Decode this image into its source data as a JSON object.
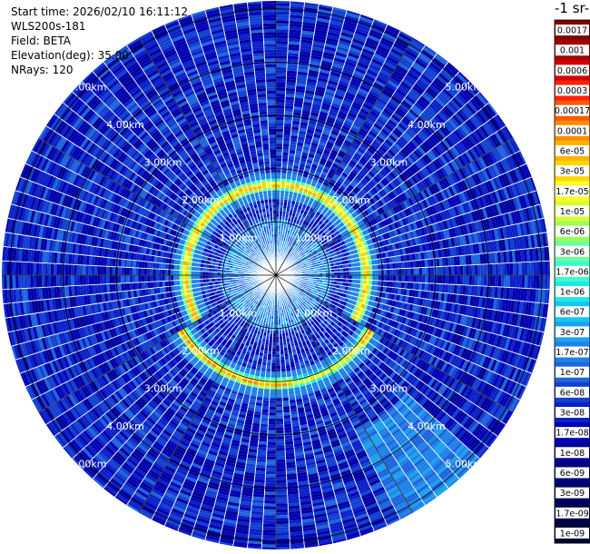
{
  "header": {
    "start_time": "Start time: 2026/02/10 16:11:12",
    "instrument": "WLS200s-181",
    "field": "Field: BETA",
    "elevation": "Elevation(deg): 35.00",
    "nrays": "NRays: 120"
  },
  "colorbar": {
    "title": "-1 sr-",
    "labels": [
      "0.0017",
      "0.001",
      "0.0006",
      "0.0003",
      "0.00017",
      "0.0001",
      "6e-05",
      "3e-05",
      "1.7e-05",
      "1e-05",
      "6e-06",
      "3e-06",
      "1.7e-06",
      "1e-06",
      "6e-07",
      "3e-07",
      "1.7e-07",
      "1e-07",
      "6e-08",
      "3e-08",
      "1.7e-08",
      "1e-08",
      "6e-09",
      "3e-09",
      "1.7e-09",
      "1e-09"
    ],
    "colors": [
      "#800000",
      "#a50000",
      "#d40000",
      "#ff2000",
      "#ff5a00",
      "#ff8c00",
      "#ffb400",
      "#ffd700",
      "#ffff28",
      "#d4ff30",
      "#9aff5a",
      "#6cffa0",
      "#3cffcc",
      "#20e8e8",
      "#10c8f0",
      "#1ca0f0",
      "#1e82e8",
      "#1e64dc",
      "#1240d0",
      "#0a20c8",
      "#0000b4",
      "#000096",
      "#00007a",
      "#000064",
      "#00004c",
      "#000038"
    ]
  },
  "chart_data": {
    "type": "heatmap",
    "projection": "polar PPI scan",
    "field": "BETA",
    "elevation_deg": 35.0,
    "n_rays": 120,
    "range_rings": [
      {
        "label": "1.00km",
        "km": 1.0
      },
      {
        "label": "2.00km",
        "km": 2.0
      },
      {
        "label": "3.00km",
        "km": 3.0
      },
      {
        "label": "4.00km",
        "km": 4.0
      },
      {
        "label": "5.00km",
        "km": 5.0
      }
    ],
    "max_range_km": 5.15,
    "azimuth_lines_deg": [
      0,
      30,
      60,
      90,
      120,
      150
    ],
    "features": {
      "background_beta": "3e-08",
      "inner_zone_beta": "1.7e-07",
      "ring_peak_beta": "0.0001",
      "ring_range_km": 1.7,
      "ring_gap_azimuth_deg": [
        130,
        170
      ],
      "southeast_enhanced_sector": {
        "azimuth_deg": [
          132,
          152
        ],
        "range_km": [
          3.3,
          5.2
        ],
        "beta": "1.7e-07"
      }
    },
    "colorscale": "log",
    "vmin": "1e-09",
    "vmax": "0.0017"
  }
}
